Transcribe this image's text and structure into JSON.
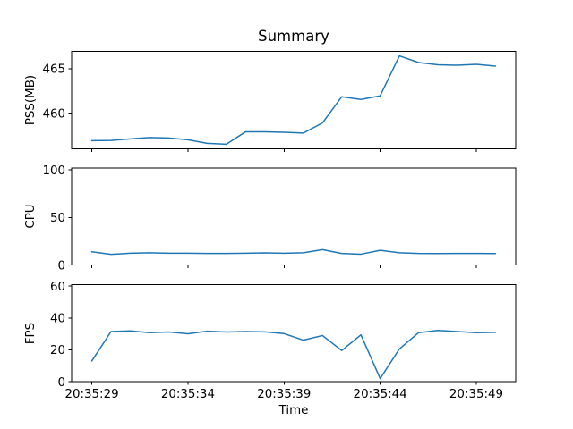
{
  "figure": {
    "title": "Summary",
    "background_color": "#ffffff",
    "line_color": "#1f77b4",
    "axis_color": "#000000"
  },
  "time_axis": {
    "label": "Time",
    "xlim": [
      27.95,
      51.05
    ],
    "points_seconds": [
      29,
      30,
      31,
      32,
      33,
      34,
      35,
      36,
      37,
      38,
      39,
      40,
      41,
      42,
      43,
      44,
      45,
      46,
      47,
      48,
      49,
      50
    ],
    "point_labels": [
      "20:35:29",
      "20:35:30",
      "20:35:31",
      "20:35:32",
      "20:35:33",
      "20:35:34",
      "20:35:35",
      "20:35:36",
      "20:35:37",
      "20:35:38",
      "20:35:39",
      "20:35:40",
      "20:35:41",
      "20:35:42",
      "20:35:43",
      "20:35:44",
      "20:35:45",
      "20:35:46",
      "20:35:47",
      "20:35:48",
      "20:35:49",
      "20:35:50"
    ],
    "tick_seconds": [
      29,
      34,
      39,
      44,
      49
    ],
    "tick_labels": [
      "20:35:29",
      "20:35:34",
      "20:35:39",
      "20:35:44",
      "20:35:49"
    ]
  },
  "chart_data": [
    {
      "id": "pss",
      "type": "line",
      "title": "Summary",
      "ylabel": "PSS(MB)",
      "yticks": [
        460,
        465
      ],
      "ylim": [
        456.0,
        466.95
      ],
      "grid": false,
      "legend": null,
      "values": [
        456.9,
        456.92,
        457.1,
        457.25,
        457.2,
        457.0,
        456.6,
        456.5,
        457.9,
        457.9,
        457.85,
        457.75,
        458.9,
        461.85,
        461.55,
        461.95,
        466.45,
        465.7,
        465.45,
        465.4,
        465.5,
        465.3
      ]
    },
    {
      "id": "cpu",
      "type": "line",
      "ylabel": "CPU",
      "yticks": [
        0,
        50,
        100
      ],
      "ylim": [
        0,
        102
      ],
      "grid": false,
      "legend": null,
      "values": [
        14.0,
        11.3,
        12.5,
        13.0,
        12.5,
        12.5,
        12.3,
        12.3,
        12.5,
        12.8,
        12.5,
        13.0,
        16.3,
        12.3,
        11.5,
        15.6,
        13.0,
        12.3,
        12.2,
        12.3,
        12.3,
        12.2
      ]
    },
    {
      "id": "fps",
      "type": "line",
      "ylabel": "FPS",
      "xlabel": "Time",
      "yticks": [
        0,
        20,
        40,
        60
      ],
      "ylim": [
        0,
        61
      ],
      "grid": false,
      "legend": null,
      "values": [
        13.0,
        31.5,
        31.9,
        30.8,
        31.2,
        30.1,
        31.7,
        31.2,
        31.5,
        31.3,
        30.2,
        26.1,
        29.0,
        19.6,
        29.4,
        2.0,
        20.6,
        30.8,
        32.2,
        31.5,
        30.8,
        31.0
      ]
    }
  ]
}
